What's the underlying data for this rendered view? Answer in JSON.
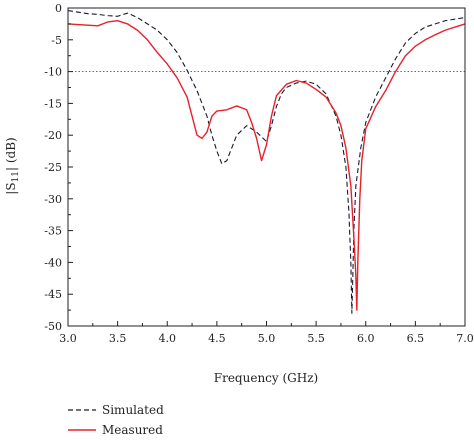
{
  "chart_data": {
    "type": "line",
    "xlabel": "Frequency (GHz)",
    "ylabel_main": "|S",
    "ylabel_sub": "11",
    "ylabel_tail": "| (dB)",
    "xlim": [
      3.0,
      7.0
    ],
    "ylim": [
      -50,
      0
    ],
    "x_ticks": [
      "3.0",
      "3.5",
      "4.0",
      "4.5",
      "5.0",
      "5.5",
      "6.0",
      "6.5",
      "7.0"
    ],
    "y_ticks": [
      "0",
      "-5",
      "-10",
      "-15",
      "-20",
      "-25",
      "-30",
      "-35",
      "-40",
      "-45",
      "-50"
    ],
    "reference_line": {
      "y": -10,
      "style": "dotted"
    },
    "grid": false,
    "legend_position": "bottom-left",
    "series": [
      {
        "name": "Simulated",
        "style": "dashed",
        "color": "#1a1a2e",
        "points": [
          [
            3.0,
            -0.4
          ],
          [
            3.2,
            -0.9
          ],
          [
            3.3,
            -1.0
          ],
          [
            3.4,
            -1.2
          ],
          [
            3.5,
            -1.3
          ],
          [
            3.6,
            -0.8
          ],
          [
            3.7,
            -1.5
          ],
          [
            3.8,
            -2.5
          ],
          [
            3.9,
            -3.5
          ],
          [
            4.0,
            -5.0
          ],
          [
            4.1,
            -7.0
          ],
          [
            4.2,
            -9.8
          ],
          [
            4.3,
            -13.0
          ],
          [
            4.4,
            -17.0
          ],
          [
            4.45,
            -20.0
          ],
          [
            4.5,
            -22.5
          ],
          [
            4.55,
            -24.5
          ],
          [
            4.6,
            -24.0
          ],
          [
            4.7,
            -20.0
          ],
          [
            4.8,
            -18.5
          ],
          [
            4.9,
            -19.5
          ],
          [
            5.0,
            -21.0
          ],
          [
            5.05,
            -18.5
          ],
          [
            5.1,
            -15.5
          ],
          [
            5.15,
            -13.5
          ],
          [
            5.2,
            -12.5
          ],
          [
            5.3,
            -11.8
          ],
          [
            5.4,
            -11.5
          ],
          [
            5.5,
            -12.0
          ],
          [
            5.6,
            -13.5
          ],
          [
            5.7,
            -17.0
          ],
          [
            5.75,
            -20.0
          ],
          [
            5.8,
            -25.0
          ],
          [
            5.83,
            -32.0
          ],
          [
            5.85,
            -40.0
          ],
          [
            5.86,
            -48.0
          ],
          [
            5.87,
            -42.0
          ],
          [
            5.88,
            -35.0
          ],
          [
            5.9,
            -28.0
          ],
          [
            5.95,
            -22.0
          ],
          [
            6.0,
            -18.0
          ],
          [
            6.1,
            -14.0
          ],
          [
            6.2,
            -11.0
          ],
          [
            6.3,
            -8.0
          ],
          [
            6.4,
            -5.5
          ],
          [
            6.5,
            -4.0
          ],
          [
            6.6,
            -3.0
          ],
          [
            6.8,
            -2.0
          ],
          [
            7.0,
            -1.5
          ]
        ]
      },
      {
        "name": "Measured",
        "style": "solid",
        "color": "#e8202a",
        "points": [
          [
            3.0,
            -2.5
          ],
          [
            3.1,
            -2.6
          ],
          [
            3.2,
            -2.7
          ],
          [
            3.3,
            -2.8
          ],
          [
            3.4,
            -2.2
          ],
          [
            3.5,
            -2.0
          ],
          [
            3.6,
            -2.5
          ],
          [
            3.7,
            -3.5
          ],
          [
            3.8,
            -5.0
          ],
          [
            3.9,
            -7.0
          ],
          [
            4.0,
            -8.8
          ],
          [
            4.1,
            -11.0
          ],
          [
            4.2,
            -14.0
          ],
          [
            4.3,
            -20.0
          ],
          [
            4.35,
            -20.5
          ],
          [
            4.4,
            -19.5
          ],
          [
            4.45,
            -17.0
          ],
          [
            4.5,
            -16.2
          ],
          [
            4.6,
            -16.0
          ],
          [
            4.7,
            -15.4
          ],
          [
            4.8,
            -16.0
          ],
          [
            4.85,
            -18.0
          ],
          [
            4.9,
            -20.5
          ],
          [
            4.95,
            -24.0
          ],
          [
            5.0,
            -21.5
          ],
          [
            5.05,
            -17.0
          ],
          [
            5.1,
            -13.8
          ],
          [
            5.2,
            -12.0
          ],
          [
            5.3,
            -11.4
          ],
          [
            5.4,
            -11.8
          ],
          [
            5.5,
            -12.8
          ],
          [
            5.6,
            -14.0
          ],
          [
            5.7,
            -16.5
          ],
          [
            5.75,
            -18.5
          ],
          [
            5.8,
            -22.0
          ],
          [
            5.85,
            -28.0
          ],
          [
            5.88,
            -36.0
          ],
          [
            5.9,
            -42.0
          ],
          [
            5.91,
            -47.5
          ],
          [
            5.92,
            -40.0
          ],
          [
            5.94,
            -30.0
          ],
          [
            5.96,
            -24.0
          ],
          [
            6.0,
            -19.0
          ],
          [
            6.1,
            -15.5
          ],
          [
            6.2,
            -13.0
          ],
          [
            6.3,
            -10.0
          ],
          [
            6.4,
            -7.5
          ],
          [
            6.5,
            -6.0
          ],
          [
            6.6,
            -5.0
          ],
          [
            6.7,
            -4.2
          ],
          [
            6.8,
            -3.5
          ],
          [
            6.9,
            -3.0
          ],
          [
            7.0,
            -2.5
          ]
        ]
      }
    ]
  }
}
